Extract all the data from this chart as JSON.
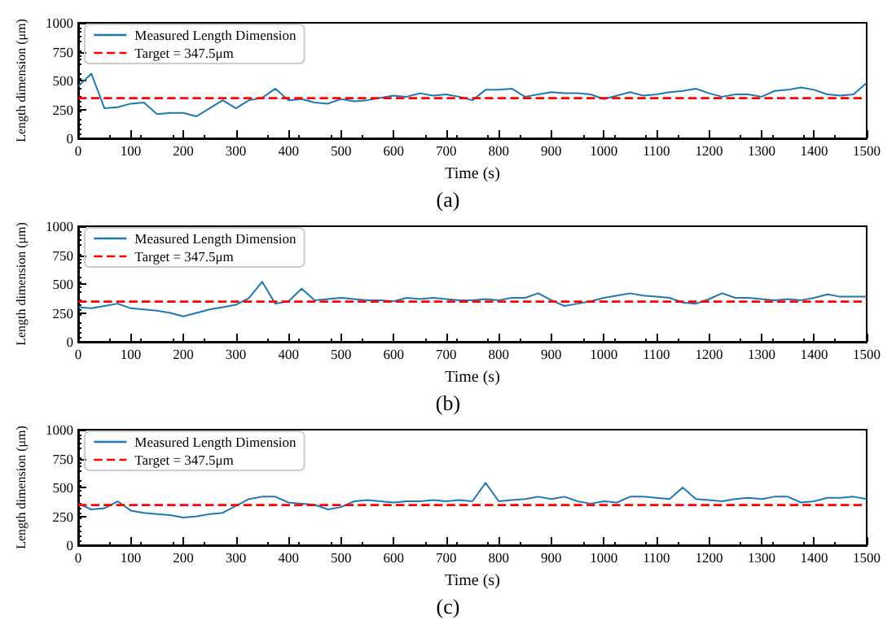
{
  "chart_data": [
    {
      "type": "line",
      "xlabel": "Time (s)",
      "ylabel": "Length dimension (μm)",
      "annotations": [
        "(a)"
      ],
      "xlim": [
        0,
        1500
      ],
      "ylim": [
        0,
        1000
      ],
      "xticks": [
        0,
        100,
        200,
        300,
        400,
        500,
        600,
        700,
        800,
        900,
        1000,
        1100,
        1200,
        1300,
        1400,
        1500
      ],
      "yticks": [
        0,
        250,
        500,
        750,
        1000
      ],
      "grid": false,
      "legend": "top left",
      "marker": "none",
      "line_style": "solid",
      "x": [
        0,
        25,
        50,
        75,
        100,
        125,
        150,
        175,
        200,
        225,
        250,
        275,
        300,
        325,
        350,
        375,
        400,
        425,
        450,
        475,
        500,
        525,
        550,
        575,
        600,
        625,
        650,
        675,
        700,
        725,
        750,
        775,
        800,
        825,
        850,
        875,
        900,
        925,
        950,
        975,
        1000,
        1025,
        1050,
        1075,
        1100,
        1125,
        1150,
        1175,
        1200,
        1225,
        1250,
        1275,
        1300,
        1325,
        1350,
        1375,
        1400,
        1425,
        1450,
        1475,
        1500
      ],
      "series": [
        {
          "name": "Measured Length Dimension",
          "color": "#1f77b4",
          "values": [
            450,
            560,
            260,
            270,
            300,
            310,
            210,
            220,
            220,
            190,
            260,
            330,
            260,
            330,
            350,
            430,
            330,
            340,
            310,
            300,
            340,
            320,
            330,
            350,
            370,
            360,
            390,
            370,
            380,
            360,
            330,
            420,
            420,
            430,
            360,
            380,
            400,
            390,
            390,
            380,
            340,
            370,
            400,
            370,
            380,
            400,
            410,
            430,
            390,
            360,
            380,
            380,
            360,
            410,
            420,
            440,
            420,
            380,
            370,
            380,
            480
          ]
        }
      ],
      "ref_lines": [
        {
          "axis": "y",
          "value": 347.5,
          "label": "Target = 347.5μm",
          "color": "#ff0000",
          "line_style": "dashed"
        }
      ]
    },
    {
      "type": "line",
      "xlabel": "Time (s)",
      "ylabel": "Length dimension (μm)",
      "annotations": [
        "(b)"
      ],
      "xlim": [
        0,
        1500
      ],
      "ylim": [
        0,
        1000
      ],
      "xticks": [
        0,
        100,
        200,
        300,
        400,
        500,
        600,
        700,
        800,
        900,
        1000,
        1100,
        1200,
        1300,
        1400,
        1500
      ],
      "yticks": [
        0,
        250,
        500,
        750,
        1000
      ],
      "grid": false,
      "legend": "top left",
      "marker": "none",
      "line_style": "solid",
      "x": [
        0,
        25,
        50,
        75,
        100,
        125,
        150,
        175,
        200,
        225,
        250,
        275,
        300,
        325,
        350,
        375,
        400,
        425,
        450,
        475,
        500,
        525,
        550,
        575,
        600,
        625,
        650,
        675,
        700,
        725,
        750,
        775,
        800,
        825,
        850,
        875,
        900,
        925,
        950,
        975,
        1000,
        1025,
        1050,
        1075,
        1100,
        1125,
        1150,
        1175,
        1200,
        1225,
        1250,
        1275,
        1300,
        1325,
        1350,
        1375,
        1400,
        1425,
        1450,
        1475,
        1500
      ],
      "series": [
        {
          "name": "Measured Length Dimension",
          "color": "#1f77b4",
          "values": [
            300,
            290,
            310,
            330,
            290,
            280,
            270,
            250,
            220,
            250,
            280,
            300,
            320,
            380,
            520,
            330,
            350,
            460,
            360,
            370,
            380,
            370,
            360,
            360,
            350,
            380,
            370,
            380,
            370,
            360,
            360,
            370,
            360,
            380,
            380,
            420,
            360,
            310,
            330,
            350,
            380,
            400,
            420,
            400,
            390,
            380,
            340,
            330,
            370,
            420,
            380,
            380,
            370,
            360,
            370,
            360,
            380,
            410,
            390,
            390,
            390
          ]
        }
      ],
      "ref_lines": [
        {
          "axis": "y",
          "value": 347.5,
          "label": "Target = 347.5μm",
          "color": "#ff0000",
          "line_style": "dashed"
        }
      ]
    },
    {
      "type": "line",
      "xlabel": "Time (s)",
      "ylabel": "Length dimension (μm)",
      "annotations": [
        "(c)"
      ],
      "xlim": [
        0,
        1500
      ],
      "ylim": [
        0,
        1000
      ],
      "xticks": [
        0,
        100,
        200,
        300,
        400,
        500,
        600,
        700,
        800,
        900,
        1000,
        1100,
        1200,
        1300,
        1400,
        1500
      ],
      "yticks": [
        0,
        250,
        500,
        750,
        1000
      ],
      "grid": false,
      "legend": "top left",
      "marker": "none",
      "line_style": "solid",
      "x": [
        0,
        25,
        50,
        75,
        100,
        125,
        150,
        175,
        200,
        225,
        250,
        275,
        300,
        325,
        350,
        375,
        400,
        425,
        450,
        475,
        500,
        525,
        550,
        575,
        600,
        625,
        650,
        675,
        700,
        725,
        750,
        775,
        800,
        825,
        850,
        875,
        900,
        925,
        950,
        975,
        1000,
        1025,
        1050,
        1075,
        1100,
        1125,
        1150,
        1175,
        1200,
        1225,
        1250,
        1275,
        1300,
        1325,
        1350,
        1375,
        1400,
        1425,
        1450,
        1475,
        1500
      ],
      "series": [
        {
          "name": "Measured Length Dimension",
          "color": "#1f77b4",
          "values": [
            360,
            310,
            320,
            380,
            300,
            280,
            270,
            260,
            240,
            250,
            270,
            280,
            340,
            400,
            420,
            420,
            370,
            360,
            350,
            310,
            330,
            380,
            390,
            380,
            370,
            380,
            380,
            390,
            380,
            390,
            380,
            540,
            380,
            390,
            400,
            420,
            400,
            420,
            380,
            360,
            380,
            370,
            420,
            420,
            410,
            400,
            500,
            400,
            390,
            380,
            400,
            410,
            400,
            420,
            420,
            370,
            380,
            410,
            410,
            420,
            400
          ]
        }
      ],
      "ref_lines": [
        {
          "axis": "y",
          "value": 347.5,
          "label": "Target = 347.5μm",
          "color": "#ff0000",
          "line_style": "dashed"
        }
      ]
    }
  ]
}
